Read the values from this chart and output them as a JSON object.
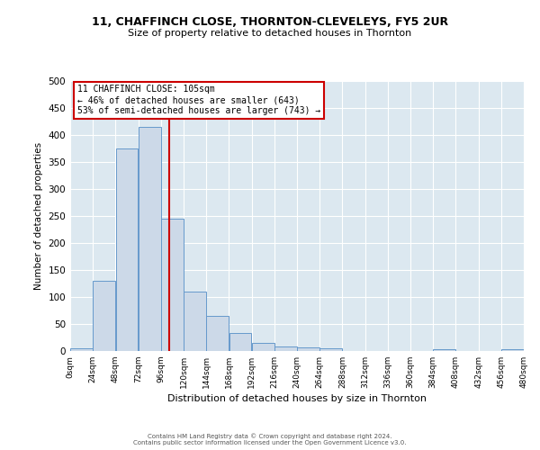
{
  "title1": "11, CHAFFINCH CLOSE, THORNTON-CLEVELEYS, FY5 2UR",
  "title2": "Size of property relative to detached houses in Thornton",
  "xlabel": "Distribution of detached houses by size in Thornton",
  "ylabel": "Number of detached properties",
  "bin_edges": [
    0,
    24,
    48,
    72,
    96,
    120,
    144,
    168,
    192,
    216,
    240,
    264,
    288,
    312,
    336,
    360,
    384,
    408,
    432,
    456,
    480
  ],
  "bar_heights": [
    5,
    130,
    375,
    415,
    245,
    110,
    65,
    33,
    15,
    8,
    6,
    5,
    0,
    0,
    0,
    0,
    3,
    0,
    0,
    3
  ],
  "bar_color": "#ccd9e8",
  "bar_edgecolor": "#6699cc",
  "property_size": 105,
  "vline_color": "#cc0000",
  "annotation_title": "11 CHAFFINCH CLOSE: 105sqm",
  "annotation_line1": "← 46% of detached houses are smaller (643)",
  "annotation_line2": "53% of semi-detached houses are larger (743) →",
  "annotation_box_edgecolor": "#cc0000",
  "annotation_box_facecolor": "#ffffff",
  "ylim": [
    0,
    500
  ],
  "yticks": [
    0,
    50,
    100,
    150,
    200,
    250,
    300,
    350,
    400,
    450,
    500
  ],
  "tick_labels": [
    "0sqm",
    "24sqm",
    "48sqm",
    "72sqm",
    "96sqm",
    "120sqm",
    "144sqm",
    "168sqm",
    "192sqm",
    "216sqm",
    "240sqm",
    "264sqm",
    "288sqm",
    "312sqm",
    "336sqm",
    "360sqm",
    "384sqm",
    "408sqm",
    "432sqm",
    "456sqm",
    "480sqm"
  ],
  "footer1": "Contains HM Land Registry data © Crown copyright and database right 2024.",
  "footer2": "Contains public sector information licensed under the Open Government Licence v3.0.",
  "background_color": "#dce8f0",
  "fig_background": "#ffffff"
}
